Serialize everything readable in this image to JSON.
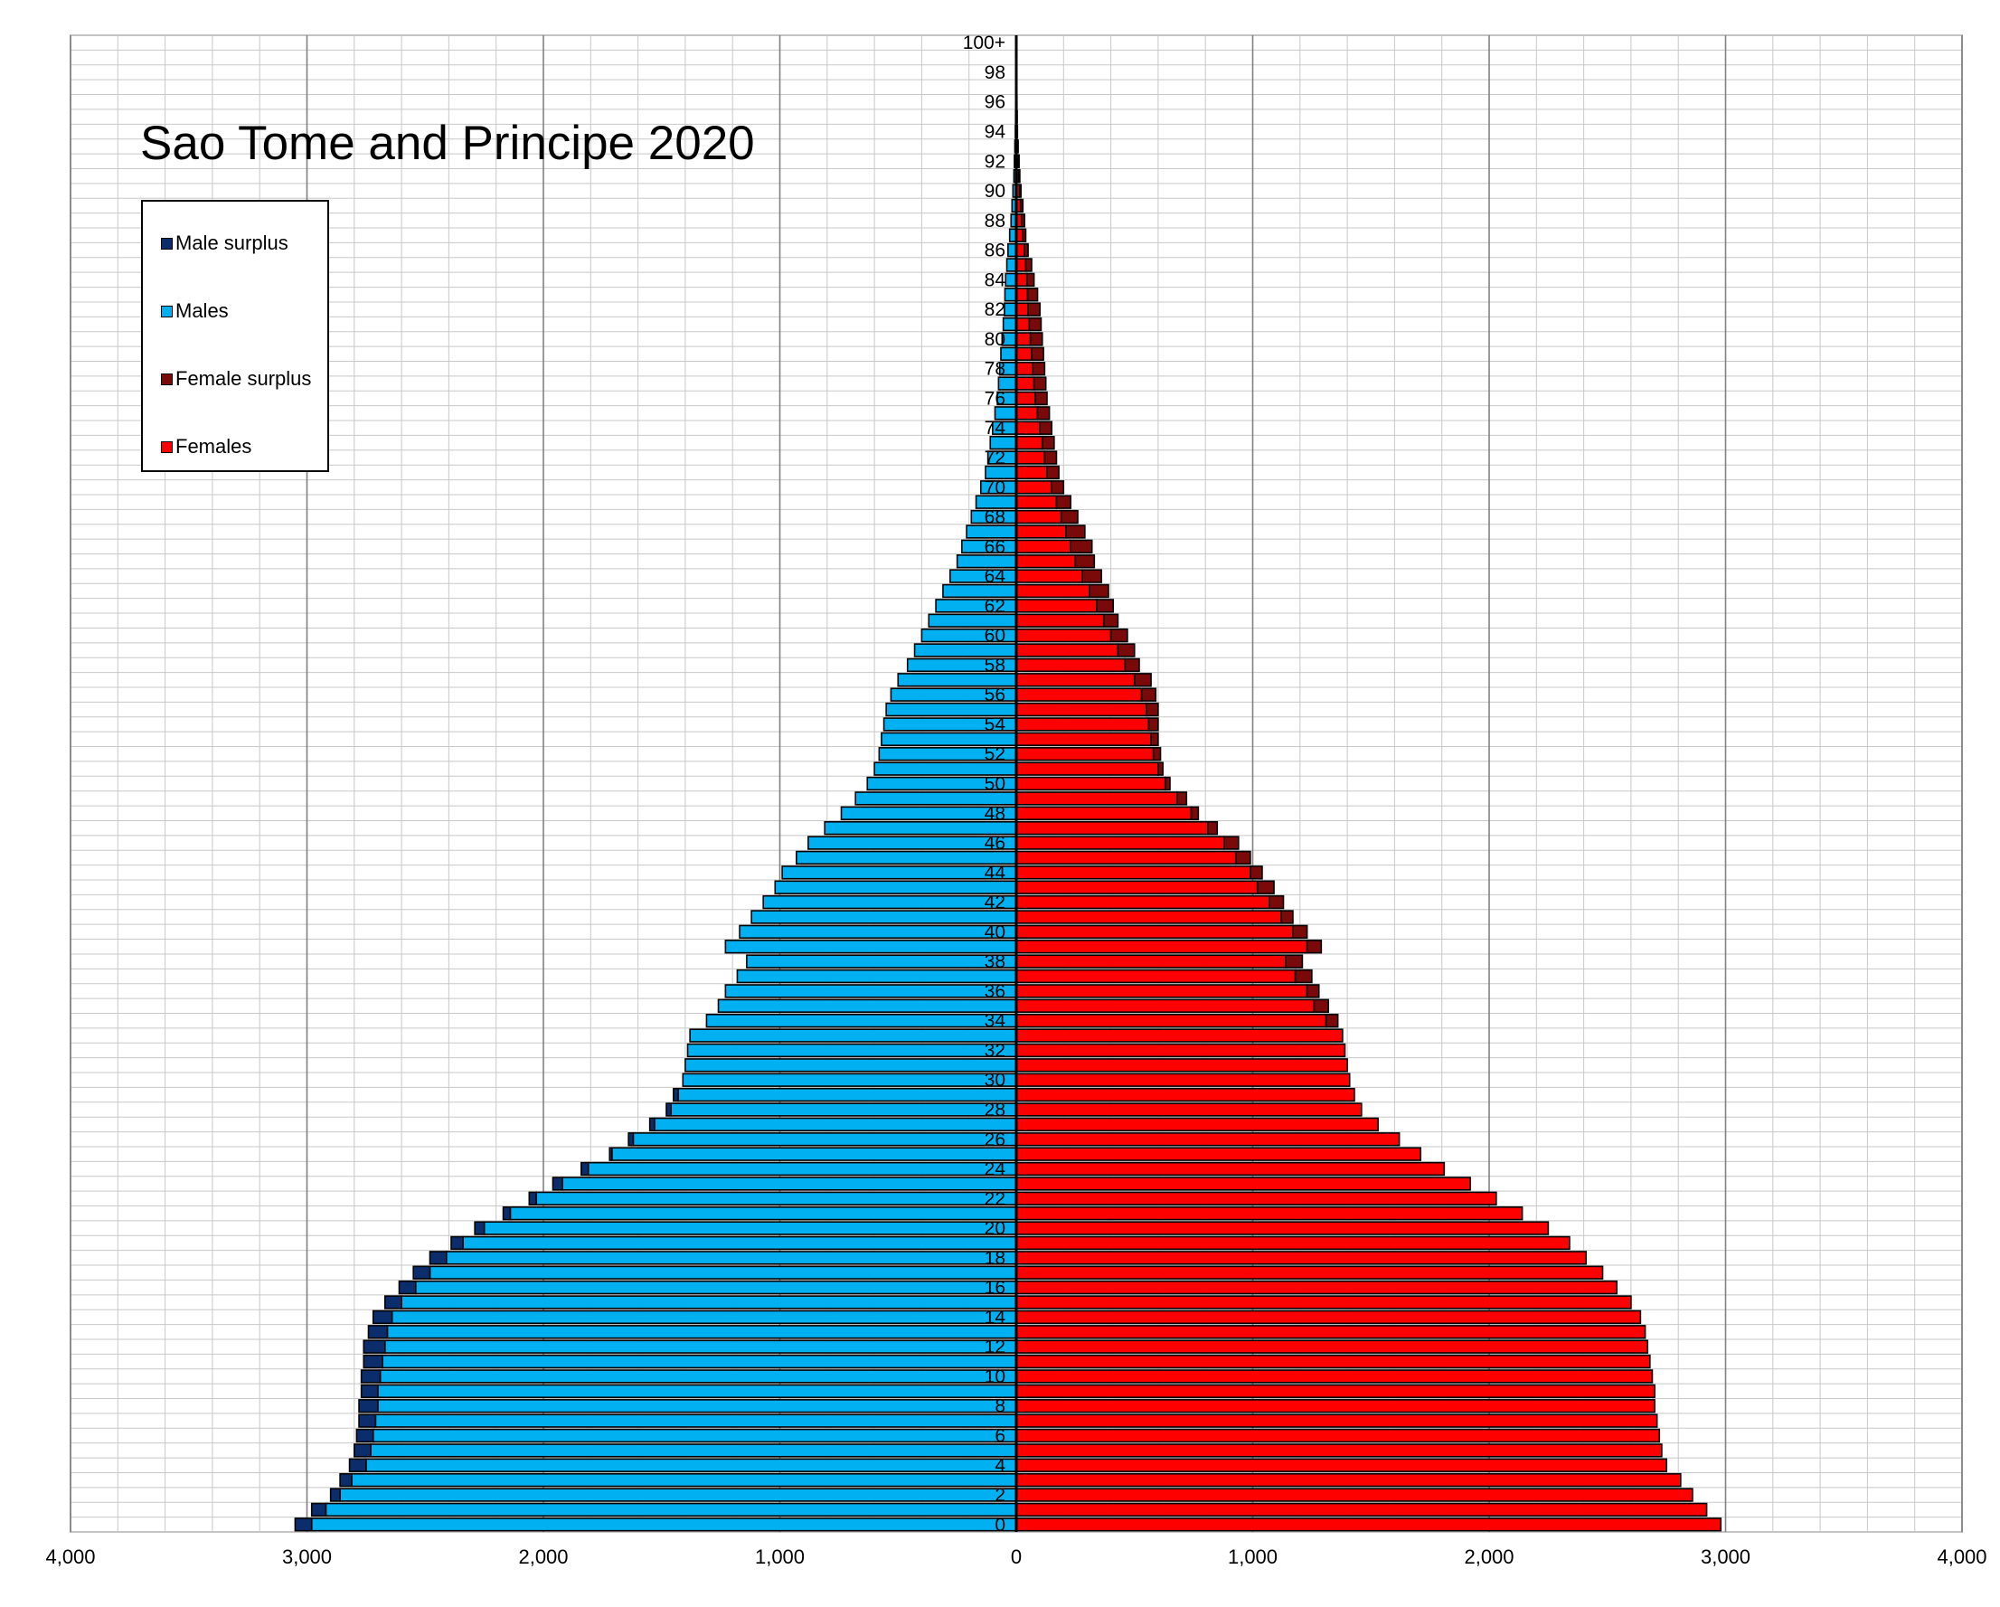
{
  "chart_data": {
    "type": "bar",
    "title": "Sao Tome and Principe 2020",
    "xlim": [
      -4000,
      4000
    ],
    "x_tick_labels": [
      "4,000",
      "3,000",
      "2,000",
      "1,000",
      "0",
      "1,000",
      "2,000",
      "3,000",
      "4,000"
    ],
    "ages": [
      "0",
      "1",
      "2",
      "3",
      "4",
      "5",
      "6",
      "7",
      "8",
      "9",
      "10",
      "11",
      "12",
      "13",
      "14",
      "15",
      "16",
      "17",
      "18",
      "19",
      "20",
      "21",
      "22",
      "23",
      "24",
      "25",
      "26",
      "27",
      "28",
      "29",
      "30",
      "31",
      "32",
      "33",
      "34",
      "35",
      "36",
      "37",
      "38",
      "39",
      "40",
      "41",
      "42",
      "43",
      "44",
      "45",
      "46",
      "47",
      "48",
      "49",
      "50",
      "51",
      "52",
      "53",
      "54",
      "55",
      "56",
      "57",
      "58",
      "59",
      "60",
      "61",
      "62",
      "63",
      "64",
      "65",
      "66",
      "67",
      "68",
      "69",
      "70",
      "71",
      "72",
      "73",
      "74",
      "75",
      "76",
      "77",
      "78",
      "79",
      "80",
      "81",
      "82",
      "83",
      "84",
      "85",
      "86",
      "87",
      "88",
      "89",
      "90",
      "91",
      "92",
      "93",
      "94",
      "95",
      "96",
      "97",
      "98",
      "99",
      "100+"
    ],
    "series": [
      {
        "name": "Males",
        "values": [
          3050,
          2980,
          2900,
          2860,
          2820,
          2800,
          2790,
          2780,
          2780,
          2770,
          2770,
          2760,
          2760,
          2740,
          2720,
          2670,
          2610,
          2550,
          2480,
          2390,
          2290,
          2170,
          2060,
          1960,
          1840,
          1720,
          1640,
          1550,
          1480,
          1450,
          1410,
          1400,
          1390,
          1380,
          1310,
          1260,
          1230,
          1180,
          1140,
          1230,
          1170,
          1120,
          1070,
          1020,
          990,
          930,
          880,
          810,
          740,
          680,
          630,
          600,
          580,
          570,
          560,
          550,
          530,
          500,
          460,
          430,
          400,
          370,
          340,
          310,
          280,
          250,
          230,
          210,
          190,
          170,
          150,
          130,
          120,
          110,
          100,
          90,
          80,
          75,
          70,
          65,
          60,
          55,
          50,
          48,
          45,
          40,
          35,
          28,
          22,
          18,
          14,
          10,
          8,
          6,
          4,
          3,
          2,
          2,
          1,
          1,
          1
        ]
      },
      {
        "name": "Females",
        "values": [
          2980,
          2920,
          2860,
          2810,
          2750,
          2730,
          2720,
          2710,
          2700,
          2700,
          2690,
          2680,
          2670,
          2660,
          2640,
          2600,
          2540,
          2480,
          2410,
          2340,
          2250,
          2140,
          2030,
          1920,
          1810,
          1710,
          1620,
          1530,
          1460,
          1430,
          1410,
          1400,
          1390,
          1380,
          1360,
          1320,
          1280,
          1250,
          1210,
          1290,
          1230,
          1170,
          1130,
          1090,
          1040,
          990,
          940,
          850,
          770,
          720,
          650,
          620,
          610,
          600,
          600,
          600,
          590,
          570,
          520,
          500,
          470,
          430,
          410,
          390,
          360,
          330,
          320,
          290,
          260,
          230,
          200,
          180,
          170,
          160,
          150,
          140,
          130,
          125,
          120,
          115,
          110,
          105,
          100,
          90,
          75,
          65,
          50,
          40,
          35,
          28,
          20,
          15,
          12,
          8,
          5,
          4,
          3,
          2,
          2,
          1,
          1
        ]
      }
    ],
    "legend": [
      "Male surplus",
      "Males",
      "Female surplus",
      "Females"
    ],
    "legend_position": "top-left",
    "colors": {
      "males": "#00B0F0",
      "male_surplus": "#0B2D6B",
      "females": "#FF0000",
      "female_surplus": "#7A0A0A",
      "grid": "#C8C8C8",
      "major_grid": "#808080"
    },
    "grid": true
  }
}
